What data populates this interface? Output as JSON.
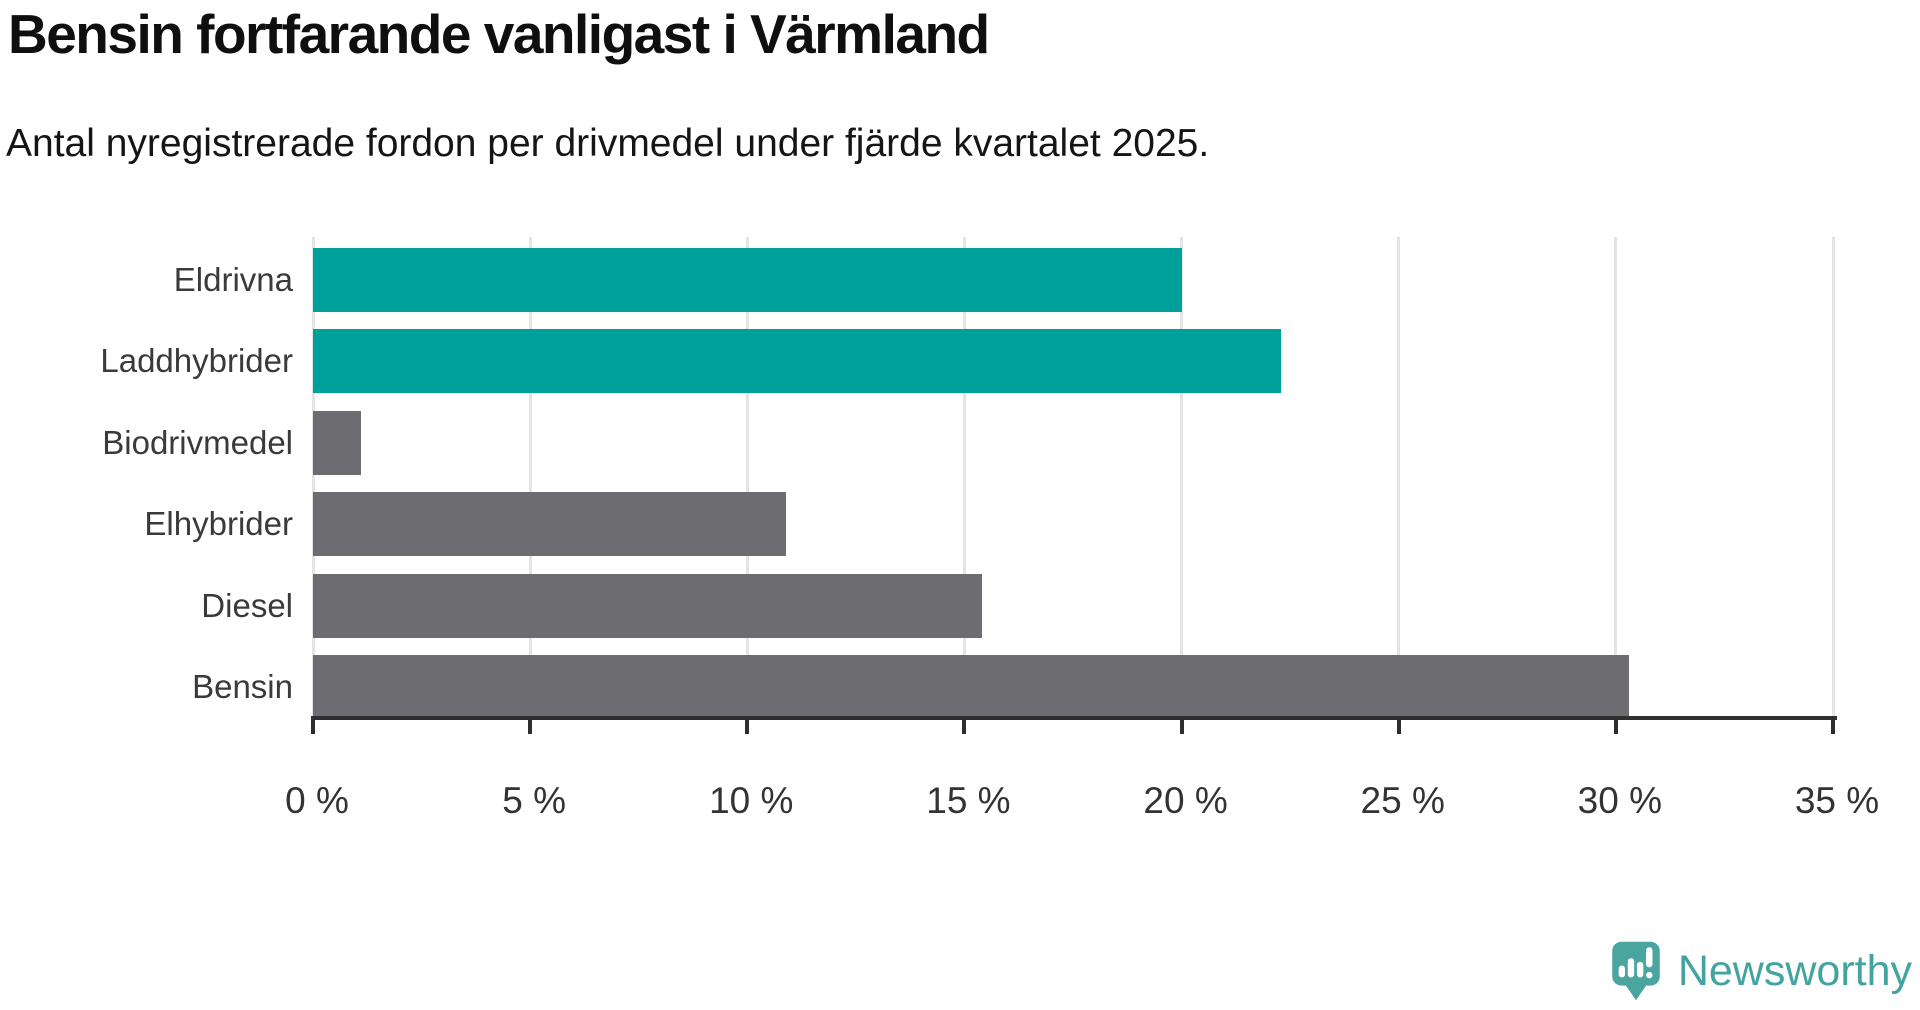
{
  "header": {
    "title": "Bensin fortfarande vanligast i Värmland",
    "subtitle": "Antal nyregistrerade fordon per drivmedel under fjärde kvartalet 2025."
  },
  "chart_data": {
    "type": "bar",
    "orientation": "horizontal",
    "title": "Bensin fortfarande vanligast i Värmland",
    "subtitle": "Antal nyregistrerade fordon per drivmedel under fjärde kvartalet 2025.",
    "categories": [
      "Eldrivna",
      "Laddhybrider",
      "Biodrivmedel",
      "Elhybrider",
      "Diesel",
      "Bensin"
    ],
    "values": [
      20.0,
      22.3,
      1.1,
      10.9,
      15.4,
      30.3
    ],
    "unit": "%",
    "bar_colors": [
      "#00a09a",
      "#00a09a",
      "#6d6c71",
      "#6d6c71",
      "#6d6c71",
      "#6d6c71"
    ],
    "xlim": [
      0,
      35
    ],
    "x_ticks": [
      0,
      5,
      10,
      15,
      20,
      25,
      30,
      35
    ],
    "x_tick_labels": [
      "0 %",
      "5 %",
      "10 %",
      "15 %",
      "20 %",
      "25 %",
      "30 %",
      "35 %"
    ],
    "grid": "vertical-only",
    "legend": "none",
    "ylabel": "",
    "xlabel": ""
  },
  "colors": {
    "highlight_bar": "#00a09a",
    "default_bar": "#6d6c71",
    "gridline": "#e4e4e4",
    "axis": "#2e2e2e",
    "title_text": "#0f0f0f",
    "category_label": "#3a3a3a",
    "tick_label": "#333333",
    "brand_teal": "#43a3a0",
    "brand_bubble": "#4aa5a0"
  },
  "branding": {
    "logo_text": "Newsworthy",
    "logo_icon": "newsworthy-speech-bubble-bars-icon"
  }
}
